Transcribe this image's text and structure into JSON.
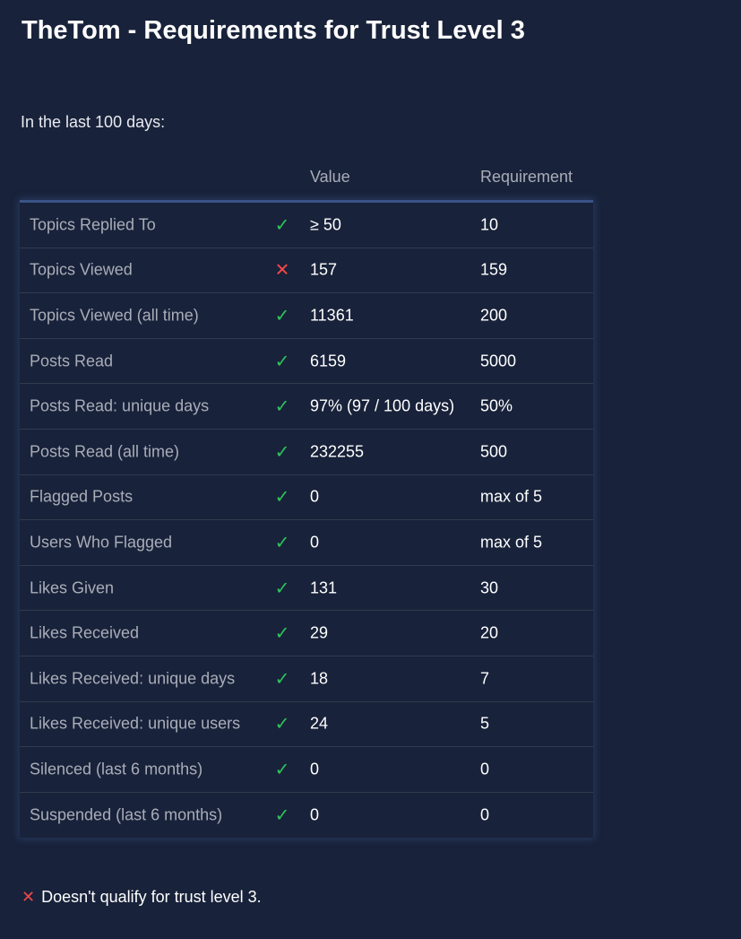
{
  "title": "TheTom - Requirements for Trust Level 3",
  "intro": "In the last 100 days:",
  "columns": {
    "value": "Value",
    "requirement": "Requirement"
  },
  "colors": {
    "background": "#18223a",
    "pass": "#2fc45a",
    "fail": "#f24848",
    "accent_border": "#3a5488"
  },
  "rows": [
    {
      "label": "Topics Replied To",
      "status": "pass",
      "value": "≥ 50",
      "requirement": "10"
    },
    {
      "label": "Topics Viewed",
      "status": "fail",
      "value": "157",
      "requirement": "159"
    },
    {
      "label": "Topics Viewed (all time)",
      "status": "pass",
      "value": "11361",
      "requirement": "200"
    },
    {
      "label": "Posts Read",
      "status": "pass",
      "value": "6159",
      "requirement": "5000"
    },
    {
      "label": "Posts Read: unique days",
      "status": "pass",
      "value": "97% (97 / 100 days)",
      "requirement": "50%"
    },
    {
      "label": "Posts Read (all time)",
      "status": "pass",
      "value": "232255",
      "requirement": "500"
    },
    {
      "label": "Flagged Posts",
      "status": "pass",
      "value": "0",
      "requirement": "max of 5"
    },
    {
      "label": "Users Who Flagged",
      "status": "pass",
      "value": "0",
      "requirement": "max of 5"
    },
    {
      "label": "Likes Given",
      "status": "pass",
      "value": "131",
      "requirement": "30"
    },
    {
      "label": "Likes Received",
      "status": "pass",
      "value": "29",
      "requirement": "20"
    },
    {
      "label": "Likes Received: unique days",
      "status": "pass",
      "value": "18",
      "requirement": "7"
    },
    {
      "label": "Likes Received: unique users",
      "status": "pass",
      "value": "24",
      "requirement": "5"
    },
    {
      "label": "Silenced (last 6 months)",
      "status": "pass",
      "value": "0",
      "requirement": "0"
    },
    {
      "label": "Suspended (last 6 months)",
      "status": "pass",
      "value": "0",
      "requirement": "0"
    }
  ],
  "result": {
    "icon": "x-icon",
    "text": "Doesn't qualify for trust level 3."
  }
}
